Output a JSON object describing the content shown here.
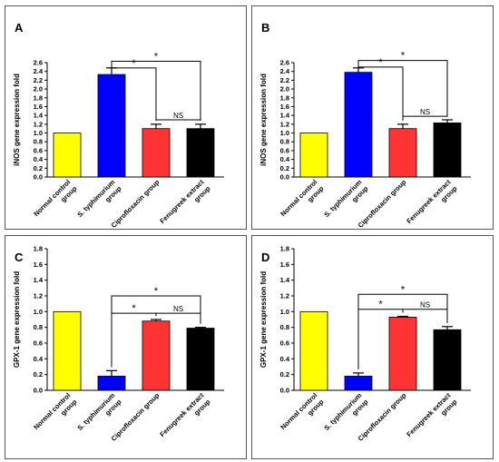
{
  "chart_data": [
    {
      "type": "bar",
      "panel_label": "A",
      "ylabel": "iNOS gene expression fold",
      "categories": [
        [
          "Normal control",
          "group"
        ],
        [
          "S. typhimurium",
          "group"
        ],
        [
          "Ciprofloxacin group"
        ],
        [
          "Fenugreek extract",
          "group"
        ]
      ],
      "values": [
        1.0,
        2.33,
        1.1,
        1.1
      ],
      "errors": [
        0.0,
        0.15,
        0.1,
        0.1
      ],
      "colors": [
        "#ffff00",
        "#0000ff",
        "#ff3333",
        "#000000"
      ],
      "ylim": [
        0,
        2.6
      ],
      "yticks": [
        "0.0",
        "0.2",
        "0.4",
        "0.6",
        "0.8",
        "1.0",
        "1.2",
        "1.4",
        "1.6",
        "1.8",
        "2.0",
        "2.2",
        "2.4",
        "2.6"
      ],
      "tick_step": 0.2,
      "annotations": [
        {
          "from": 1,
          "to": 2,
          "label": "*",
          "y": 2.48
        },
        {
          "from": 1,
          "to": 3,
          "label": "*",
          "y": 2.63
        },
        {
          "from": 2,
          "to": 3,
          "label": "NS",
          "y": 1.3
        }
      ]
    },
    {
      "type": "bar",
      "panel_label": "B",
      "ylabel": "iNOS gene expression fold",
      "categories": [
        [
          "Normal control",
          "group"
        ],
        [
          "S. typhimurium",
          "group"
        ],
        [
          "Ciprofloxacin group"
        ],
        [
          "Fenugreek extract",
          "group"
        ]
      ],
      "values": [
        1.0,
        2.38,
        1.1,
        1.23
      ],
      "errors": [
        0.0,
        0.1,
        0.1,
        0.07
      ],
      "colors": [
        "#ffff00",
        "#0000ff",
        "#ff3333",
        "#000000"
      ],
      "ylim": [
        0,
        2.6
      ],
      "yticks": [
        "0.0",
        "0.2",
        "0.4",
        "0.6",
        "0.8",
        "1.0",
        "1.2",
        "1.4",
        "1.6",
        "1.8",
        "2.0",
        "2.2",
        "2.4",
        "2.6"
      ],
      "tick_step": 0.2,
      "annotations": [
        {
          "from": 1,
          "to": 2,
          "label": "*",
          "y": 2.5
        },
        {
          "from": 1,
          "to": 3,
          "label": "*",
          "y": 2.65
        },
        {
          "from": 2,
          "to": 3,
          "label": "NS",
          "y": 1.38
        }
      ]
    },
    {
      "type": "bar",
      "panel_label": "C",
      "ylabel": "GPX-1 gene expression fold",
      "categories": [
        [
          "Normal control",
          "group"
        ],
        [
          "S. typhimurium",
          "group"
        ],
        [
          "Ciprofloxacin group"
        ],
        [
          "Fenugreek extract",
          "group"
        ]
      ],
      "values": [
        1.0,
        0.18,
        0.88,
        0.79
      ],
      "errors": [
        0.0,
        0.07,
        0.02,
        0.01
      ],
      "colors": [
        "#ffff00",
        "#0000ff",
        "#ff3333",
        "#000000"
      ],
      "ylim": [
        0,
        1.8
      ],
      "yticks": [
        "0.0",
        "0.2",
        "0.4",
        "0.6",
        "0.8",
        "1.0",
        "1.2",
        "1.4",
        "1.6",
        "1.8"
      ],
      "tick_step": 0.2,
      "annotations": [
        {
          "from": 1,
          "to": 2,
          "label": "*",
          "y": 0.98
        },
        {
          "from": 1,
          "to": 3,
          "label": "*",
          "y": 1.2
        },
        {
          "from": 2,
          "to": 3,
          "label": "NS",
          "y": 0.98
        }
      ]
    },
    {
      "type": "bar",
      "panel_label": "D",
      "ylabel": "GPX-1 gene expression fold",
      "categories": [
        [
          "Normal control",
          "group"
        ],
        [
          "S. typhimurium",
          "group"
        ],
        [
          "Ciprofloxacin group"
        ],
        [
          "Fenugreek extract",
          "group"
        ]
      ],
      "values": [
        1.0,
        0.18,
        0.93,
        0.77
      ],
      "errors": [
        0.0,
        0.04,
        0.01,
        0.04
      ],
      "colors": [
        "#ffff00",
        "#0000ff",
        "#ff3333",
        "#000000"
      ],
      "ylim": [
        0,
        1.8
      ],
      "yticks": [
        "0.0",
        "0.2",
        "0.4",
        "0.6",
        "0.8",
        "1.0",
        "1.2",
        "1.4",
        "1.6",
        "1.8"
      ],
      "tick_step": 0.2,
      "annotations": [
        {
          "from": 1,
          "to": 2,
          "label": "*",
          "y": 1.03
        },
        {
          "from": 1,
          "to": 3,
          "label": "*",
          "y": 1.22
        },
        {
          "from": 2,
          "to": 3,
          "label": "NS",
          "y": 1.03
        }
      ]
    }
  ]
}
